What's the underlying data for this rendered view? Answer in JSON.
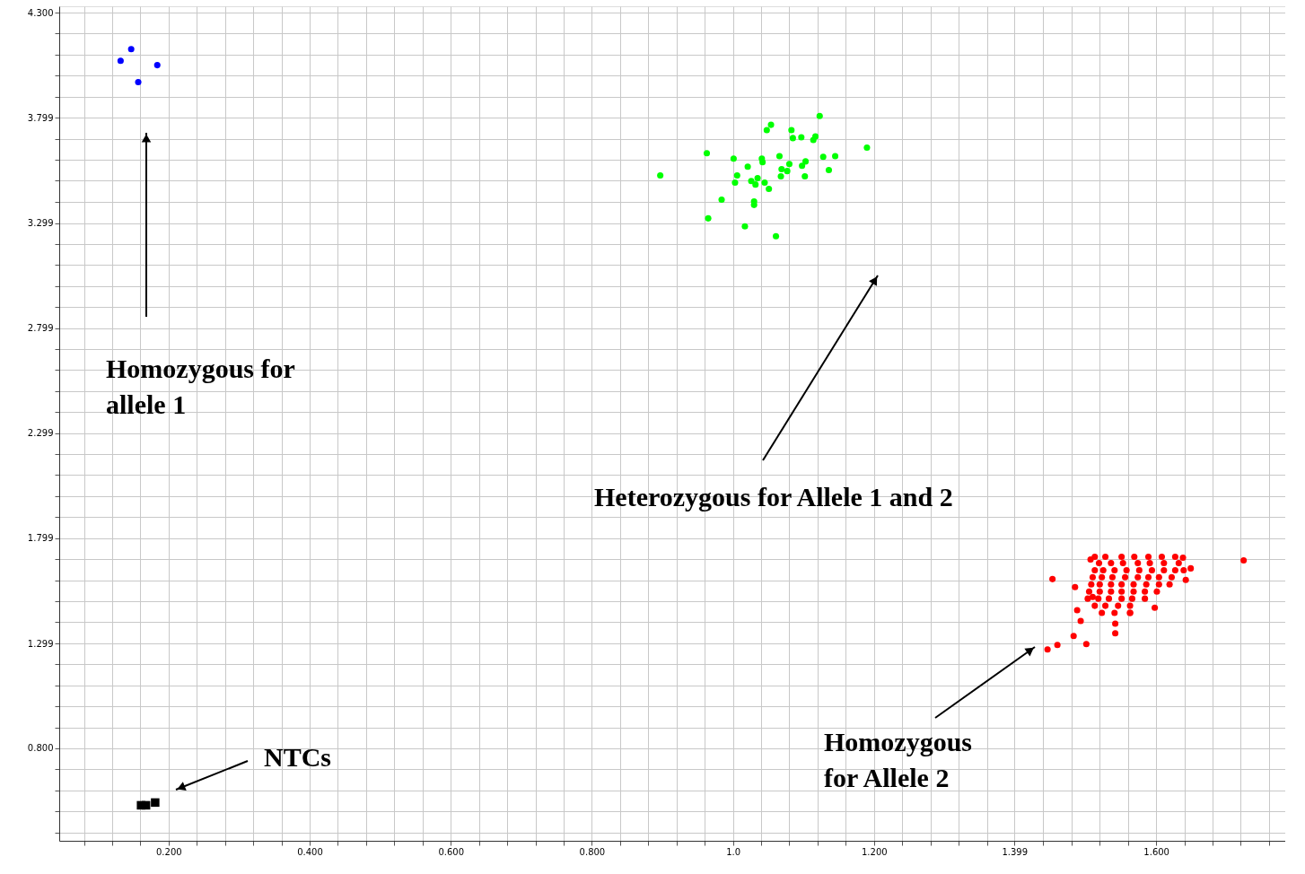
{
  "chart_data": {
    "type": "scatter",
    "xlim": [
      0.045,
      1.783
    ],
    "ylim": [
      0.36,
      4.33
    ],
    "xticks": [
      {
        "value": 0.08,
        "label": null
      },
      {
        "value": 0.12,
        "label": null
      },
      {
        "value": 0.16,
        "label": null
      },
      {
        "value": 0.2,
        "label": "0.200"
      },
      {
        "value": 0.24,
        "label": null
      },
      {
        "value": 0.28,
        "label": null
      },
      {
        "value": 0.32,
        "label": null
      },
      {
        "value": 0.36,
        "label": null
      },
      {
        "value": 0.4,
        "label": "0.400"
      },
      {
        "value": 0.44,
        "label": null
      },
      {
        "value": 0.48,
        "label": null
      },
      {
        "value": 0.52,
        "label": null
      },
      {
        "value": 0.56,
        "label": null
      },
      {
        "value": 0.6,
        "label": "0.600"
      },
      {
        "value": 0.64,
        "label": null
      },
      {
        "value": 0.68,
        "label": null
      },
      {
        "value": 0.72,
        "label": null
      },
      {
        "value": 0.76,
        "label": null
      },
      {
        "value": 0.8,
        "label": "0.800"
      },
      {
        "value": 0.84,
        "label": null
      },
      {
        "value": 0.88,
        "label": null
      },
      {
        "value": 0.92,
        "label": null
      },
      {
        "value": 0.96,
        "label": null
      },
      {
        "value": 1.0,
        "label": "1.0"
      },
      {
        "value": 1.04,
        "label": null
      },
      {
        "value": 1.08,
        "label": null
      },
      {
        "value": 1.12,
        "label": null
      },
      {
        "value": 1.16,
        "label": null
      },
      {
        "value": 1.2,
        "label": "1.200"
      },
      {
        "value": 1.24,
        "label": null
      },
      {
        "value": 1.28,
        "label": null
      },
      {
        "value": 1.32,
        "label": null
      },
      {
        "value": 1.36,
        "label": null
      },
      1.399,
      {
        "value": 1.44,
        "label": null
      },
      {
        "value": 1.48,
        "label": null
      },
      {
        "value": 1.52,
        "label": null
      },
      {
        "value": 1.56,
        "label": null
      },
      {
        "value": 1.6,
        "label": "1.600"
      },
      {
        "value": 1.64,
        "label": null
      },
      {
        "value": 1.68,
        "label": null
      },
      {
        "value": 1.72,
        "label": null
      },
      {
        "value": 1.76,
        "label": null
      }
    ],
    "yticks": [
      {
        "value": 0.4,
        "label": null
      },
      {
        "value": 0.5,
        "label": null
      },
      {
        "value": 0.6,
        "label": null
      },
      {
        "value": 0.7,
        "label": null
      },
      {
        "value": 0.8,
        "label": "0.800"
      },
      {
        "value": 0.9,
        "label": null
      },
      {
        "value": 1.0,
        "label": null
      },
      {
        "value": 1.1,
        "label": null
      },
      {
        "value": 1.2,
        "label": null
      },
      1.299,
      {
        "value": 1.4,
        "label": null
      },
      {
        "value": 1.5,
        "label": null
      },
      {
        "value": 1.6,
        "label": null
      },
      {
        "value": 1.7,
        "label": null
      },
      1.799,
      {
        "value": 1.9,
        "label": null
      },
      {
        "value": 2.0,
        "label": null
      },
      {
        "value": 2.1,
        "label": null
      },
      {
        "value": 2.2,
        "label": null
      },
      2.299,
      {
        "value": 2.4,
        "label": null
      },
      {
        "value": 2.5,
        "label": null
      },
      {
        "value": 2.6,
        "label": null
      },
      {
        "value": 2.7,
        "label": null
      },
      2.799,
      {
        "value": 2.9,
        "label": null
      },
      {
        "value": 3.0,
        "label": null
      },
      {
        "value": 3.1,
        "label": null
      },
      {
        "value": 3.2,
        "label": null
      },
      3.299,
      {
        "value": 3.4,
        "label": null
      },
      {
        "value": 3.5,
        "label": null
      },
      {
        "value": 3.6,
        "label": null
      },
      {
        "value": 3.7,
        "label": null
      },
      3.799,
      {
        "value": 3.9,
        "label": null
      },
      {
        "value": 4.0,
        "label": null
      },
      {
        "value": 4.1,
        "label": null
      },
      {
        "value": 4.2,
        "label": null
      },
      {
        "value": 4.3,
        "label": "4.300"
      }
    ],
    "grid": true,
    "series": [
      {
        "color": "#0000ff",
        "marker": "circle",
        "x": [
          0.132,
          0.147,
          0.184,
          0.157
        ],
        "values": [
          4.071,
          4.126,
          4.05,
          3.969
        ]
      },
      {
        "color": "#00ff00",
        "marker": "circle",
        "x": [
          0.897,
          0.963,
          0.965,
          0.984,
          1.001,
          1.003,
          1.006,
          1.017,
          1.021,
          1.026,
          1.03,
          1.03,
          1.032,
          1.035,
          1.041,
          1.042,
          1.045,
          1.048,
          1.051,
          1.054,
          1.061,
          1.066,
          1.068,
          1.069,
          1.077,
          1.08,
          1.083,
          1.085,
          1.097,
          1.098,
          1.102,
          1.103,
          1.114,
          1.117,
          1.123,
          1.128,
          1.136,
          1.145,
          1.19
        ],
        "values": [
          3.525,
          3.631,
          3.321,
          3.41,
          3.605,
          3.491,
          3.525,
          3.283,
          3.567,
          3.499,
          3.401,
          3.385,
          3.482,
          3.512,
          3.605,
          3.588,
          3.491,
          3.741,
          3.461,
          3.766,
          3.236,
          3.617,
          3.521,
          3.555,
          3.546,
          3.58,
          3.741,
          3.703,
          3.707,
          3.571,
          3.521,
          3.592,
          3.694,
          3.711,
          3.808,
          3.614,
          3.551,
          3.617,
          3.658
        ]
      },
      {
        "color": "#ff0000",
        "marker": "circle",
        "x": [
          1.446,
          1.46,
          1.453,
          1.483,
          1.485,
          1.488,
          1.493,
          1.501,
          1.542,
          1.724,
          1.507,
          1.638,
          1.649,
          1.642,
          1.598,
          1.563,
          1.542,
          1.51,
          1.513,
          1.528,
          1.551,
          1.569,
          1.589,
          1.608,
          1.627,
          1.519,
          1.536,
          1.553,
          1.574,
          1.591,
          1.611,
          1.632,
          1.513,
          1.525,
          1.541,
          1.558,
          1.576,
          1.594,
          1.611,
          1.627,
          1.639,
          1.51,
          1.523,
          1.538,
          1.556,
          1.574,
          1.589,
          1.604,
          1.622,
          1.508,
          1.52,
          1.536,
          1.551,
          1.568,
          1.586,
          1.604,
          1.619,
          1.505,
          1.52,
          1.536,
          1.551,
          1.568,
          1.584,
          1.601,
          1.503,
          1.518,
          1.533,
          1.551,
          1.566,
          1.584,
          1.513,
          1.528,
          1.546,
          1.563,
          1.523,
          1.541,
          1.563
        ],
        "values": [
          1.27,
          1.292,
          1.605,
          1.334,
          1.567,
          1.457,
          1.406,
          1.296,
          1.347,
          1.694,
          1.698,
          1.707,
          1.656,
          1.601,
          1.469,
          1.444,
          1.393,
          1.52,
          1.711,
          1.711,
          1.711,
          1.711,
          1.711,
          1.711,
          1.711,
          1.681,
          1.681,
          1.681,
          1.681,
          1.681,
          1.681,
          1.681,
          1.647,
          1.647,
          1.647,
          1.647,
          1.647,
          1.647,
          1.647,
          1.647,
          1.647,
          1.614,
          1.614,
          1.614,
          1.614,
          1.614,
          1.614,
          1.614,
          1.614,
          1.58,
          1.58,
          1.58,
          1.58,
          1.58,
          1.58,
          1.58,
          1.58,
          1.546,
          1.546,
          1.546,
          1.546,
          1.546,
          1.546,
          1.546,
          1.512,
          1.512,
          1.512,
          1.512,
          1.512,
          1.512,
          1.478,
          1.478,
          1.478,
          1.478,
          1.444,
          1.444,
          1.444
        ]
      },
      {
        "color": "#000000",
        "marker": "square",
        "x": [
          0.161,
          0.168,
          0.181
        ],
        "values": [
          0.529,
          0.529,
          0.542
        ]
      }
    ],
    "annotations": [
      "Homozygous for\nallele 1",
      "Heterozygous for Allele 1 and 2",
      "Homozygous\nfor Allele 2",
      "NTCs"
    ]
  }
}
